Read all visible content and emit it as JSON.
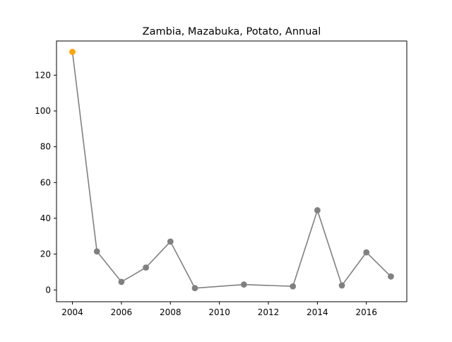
{
  "chart_data": {
    "type": "line",
    "title": "Zambia, Mazabuka, Potato, Annual",
    "xlabel": "",
    "ylabel": "",
    "xlim": [
      2003.35,
      2017.65
    ],
    "ylim": [
      -6.6,
      139.1
    ],
    "xticks": [
      2004,
      2006,
      2008,
      2010,
      2012,
      2014,
      2016
    ],
    "yticks": [
      0,
      20,
      40,
      60,
      80,
      100,
      120
    ],
    "grid": false,
    "series": [
      {
        "x": [
          2004,
          2005,
          2006,
          2007,
          2008,
          2009,
          2011,
          2013,
          2014,
          2015,
          2016,
          2017
        ],
        "y": [
          133,
          21.5,
          4.5,
          12.5,
          27,
          1,
          3,
          2,
          44.5,
          2.5,
          21,
          7.5
        ],
        "color": "#808080",
        "highlight_index": 0,
        "highlight_color": "#ffa500"
      }
    ]
  }
}
